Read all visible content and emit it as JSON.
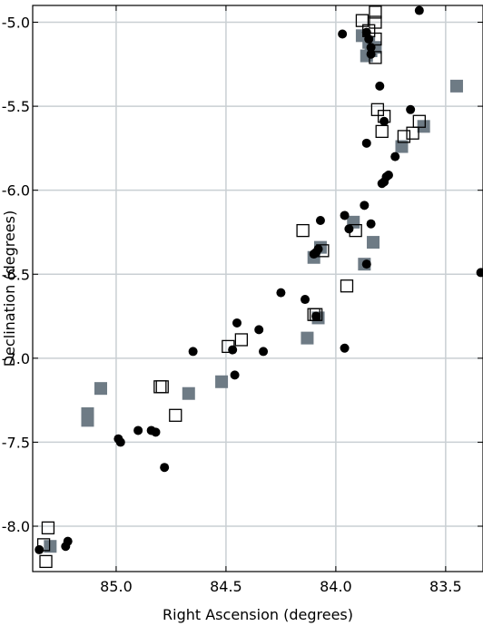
{
  "chart_data": {
    "type": "scatter",
    "title": "",
    "xlabel": "Right Ascension (degrees)",
    "ylabel": "Declination (degrees)",
    "xlim": [
      85.38,
      83.33
    ],
    "ylim": [
      -8.27,
      -4.9
    ],
    "x_inverted": true,
    "grid": true,
    "legend": "none",
    "x_ticks": [
      85.0,
      84.5,
      84.0,
      83.5
    ],
    "x_tick_labels": [
      "85.0",
      "84.5",
      "84.0",
      "83.5"
    ],
    "y_ticks": [
      -5.0,
      -5.5,
      -6.0,
      -6.5,
      -7.0,
      -7.5,
      -8.0
    ],
    "y_tick_labels": [
      "-5.0",
      "-5.5",
      "-6.0",
      "-6.5",
      "-7.0",
      "-7.5",
      "-8.0"
    ],
    "colors": {
      "filled_gray": "#6e7b85",
      "black": "#000000",
      "grid": "#c9cfd3",
      "open_edge": "#000000"
    },
    "series": [
      {
        "marker": "circle-filled-black",
        "x": [
          83.62,
          83.97,
          83.86,
          83.85,
          83.84,
          83.84,
          83.8,
          83.86,
          83.78,
          83.73,
          83.79,
          83.77,
          83.78,
          83.76,
          83.66,
          83.87,
          83.96,
          84.07,
          83.84,
          83.94,
          84.08,
          84.09,
          84.1,
          83.86,
          84.25,
          84.14,
          84.09,
          84.45,
          84.35,
          84.65,
          84.46,
          84.33,
          84.47,
          83.96,
          84.99,
          84.98,
          84.9,
          84.84,
          84.82,
          84.78,
          85.35,
          85.22,
          85.23,
          83.34
        ],
        "y": [
          -4.93,
          -5.07,
          -5.06,
          -5.1,
          -5.15,
          -5.19,
          -5.38,
          -5.72,
          -5.59,
          -5.8,
          -5.96,
          -5.92,
          -5.95,
          -5.91,
          -5.52,
          -6.09,
          -6.15,
          -6.18,
          -6.2,
          -6.23,
          -6.35,
          -6.37,
          -6.38,
          -6.44,
          -6.61,
          -6.65,
          -6.75,
          -6.79,
          -6.83,
          -6.96,
          -7.1,
          -6.96,
          -6.95,
          -6.94,
          -7.48,
          -7.5,
          -7.43,
          -7.43,
          -7.44,
          -7.65,
          -8.14,
          -8.09,
          -8.12,
          -6.49
        ]
      },
      {
        "marker": "square-filled-gray",
        "x": [
          83.88,
          83.85,
          83.84,
          83.86,
          83.82,
          83.45,
          83.7,
          83.6,
          83.92,
          84.07,
          84.1,
          83.83,
          83.87,
          84.08,
          84.13,
          84.52,
          84.67,
          85.07,
          85.13,
          85.13,
          85.3
        ],
        "y": [
          -5.08,
          -5.12,
          -5.17,
          -5.2,
          -5.15,
          -5.38,
          -5.74,
          -5.62,
          -6.19,
          -6.34,
          -6.4,
          -6.31,
          -6.44,
          -6.76,
          -6.88,
          -7.14,
          -7.21,
          -7.18,
          -7.33,
          -7.37,
          -8.12
        ]
      },
      {
        "marker": "square-open",
        "x": [
          83.88,
          83.82,
          83.82,
          83.85,
          83.82,
          83.82,
          83.81,
          83.78,
          83.65,
          83.62,
          83.69,
          83.79,
          84.15,
          83.91,
          84.06,
          84.09,
          83.95,
          84.1,
          84.43,
          84.49,
          84.79,
          84.8,
          84.73,
          85.31,
          85.33,
          85.32
        ],
        "y": [
          -4.99,
          -4.94,
          -5.0,
          -5.05,
          -5.1,
          -5.21,
          -5.52,
          -5.56,
          -5.66,
          -5.59,
          -5.68,
          -5.65,
          -6.24,
          -6.24,
          -6.36,
          -6.74,
          -6.57,
          -6.74,
          -6.89,
          -6.93,
          -7.17,
          -7.17,
          -7.34,
          -8.01,
          -8.11,
          -8.21
        ]
      }
    ]
  }
}
